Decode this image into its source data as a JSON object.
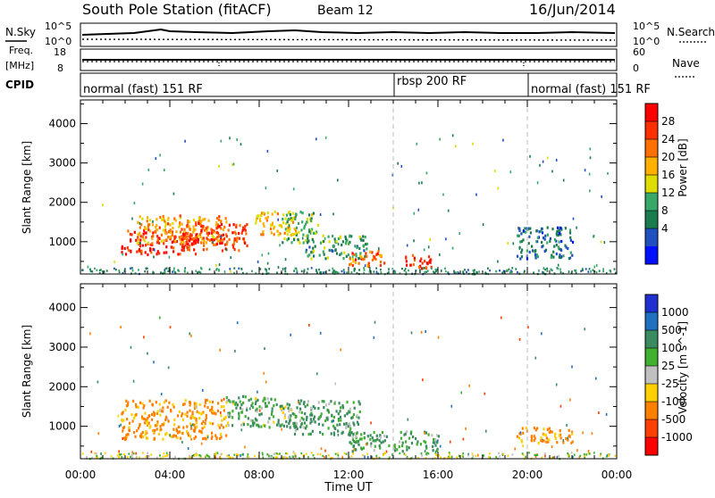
{
  "header": {
    "station": "South Pole Station (fitACF)",
    "beam": "Beam 12",
    "date": "16/Jun/2014"
  },
  "noise_panel": {
    "left_label": "N.Sky",
    "left_ticks": [
      "10^5",
      "10^0"
    ],
    "right_label": "N.Search",
    "right_ticks": [
      "10^5",
      "10^0"
    ]
  },
  "freq_panel": {
    "left_label_line1": "Freq.",
    "left_label_line2": "[MHz]",
    "left_ticks": [
      "18",
      "8"
    ],
    "right_label": "Nave",
    "right_ticks": [
      "60",
      "0"
    ]
  },
  "cpid_panel": {
    "label": "CPID",
    "segments": [
      {
        "name": "normal (fast) 151 RF",
        "start": 0,
        "end": 14
      },
      {
        "name": "rbsp 200 RF",
        "start": 14,
        "end": 20
      },
      {
        "name": "normal (fast) 151 RF",
        "start": 20,
        "end": 24
      }
    ]
  },
  "colorbars": {
    "power": {
      "label": "Power [dB]",
      "ticks": [
        "28",
        "24",
        "20",
        "16",
        "12",
        "8",
        "4"
      ],
      "colors": [
        "#ff0000",
        "#ff3000",
        "#ff7000",
        "#ffb000",
        "#dddd00",
        "#38a868",
        "#1c7c50",
        "#2050c0",
        "#0010ff"
      ]
    },
    "velocity": {
      "label": "Velocity [m s^-1]",
      "ticks": [
        "1000",
        "500",
        "100",
        "25",
        "-25",
        "-100",
        "-500",
        "-1000"
      ],
      "colors": [
        "#2030d0",
        "#2070c0",
        "#3a8c60",
        "#40b030",
        "#c0c0c0",
        "#ffd000",
        "#ff8000",
        "#ff4000",
        "#ff0000"
      ]
    }
  },
  "chart_data": [
    {
      "type": "heatmap",
      "title": "Power",
      "xlabel": "",
      "ylabel": "Slant Range [km]",
      "xlim": [
        0,
        24
      ],
      "ylim": [
        180,
        4600
      ],
      "x_ticks": [
        "00:00",
        "04:00",
        "08:00",
        "12:00",
        "16:00",
        "20:00",
        "00:00"
      ],
      "y_ticks": [
        "1000",
        "2000",
        "3000",
        "4000"
      ],
      "regions": [
        {
          "x": [
            1.8,
            5.2
          ],
          "y": [
            700,
            1350
          ],
          "power_db": 28
        },
        {
          "x": [
            2.5,
            6.5
          ],
          "y": [
            1000,
            1700
          ],
          "power_db": 20
        },
        {
          "x": [
            4.5,
            7.5
          ],
          "y": [
            800,
            1500
          ],
          "power_db": 26
        },
        {
          "x": [
            7.8,
            9.6
          ],
          "y": [
            1200,
            1800
          ],
          "power_db": 18
        },
        {
          "x": [
            9.0,
            10.6
          ],
          "y": [
            1000,
            1800
          ],
          "power_db": 12
        },
        {
          "x": [
            10.0,
            12.8
          ],
          "y": [
            600,
            1200
          ],
          "power_db": 10
        },
        {
          "x": [
            12.0,
            13.6
          ],
          "y": [
            400,
            800
          ],
          "power_db": 24
        },
        {
          "x": [
            14.4,
            15.8
          ],
          "y": [
            350,
            700
          ],
          "power_db": 28
        },
        {
          "x": [
            19.5,
            22.0
          ],
          "y": [
            600,
            1400
          ],
          "power_db": 6
        }
      ]
    },
    {
      "type": "heatmap",
      "title": "Velocity",
      "xlabel": "Time UT",
      "ylabel": "Slant Range [km]",
      "xlim": [
        0,
        24
      ],
      "ylim": [
        180,
        4600
      ],
      "x_ticks": [
        "00:00",
        "04:00",
        "08:00",
        "12:00",
        "16:00",
        "20:00",
        "00:00"
      ],
      "y_ticks": [
        "1000",
        "2000",
        "3000",
        "4000"
      ],
      "regions": [
        {
          "x": [
            1.8,
            6.5
          ],
          "y": [
            700,
            1700
          ],
          "velocity": -150
        },
        {
          "x": [
            6.5,
            9.5
          ],
          "y": [
            1000,
            1800
          ],
          "velocity": 80
        },
        {
          "x": [
            9.5,
            12.5
          ],
          "y": [
            800,
            1700
          ],
          "velocity": 120
        },
        {
          "x": [
            12.0,
            16.0
          ],
          "y": [
            400,
            900
          ],
          "velocity": 120
        },
        {
          "x": [
            19.5,
            22.0
          ],
          "y": [
            600,
            1000
          ],
          "velocity": -150
        }
      ]
    }
  ],
  "x_axis_title": "Time UT"
}
